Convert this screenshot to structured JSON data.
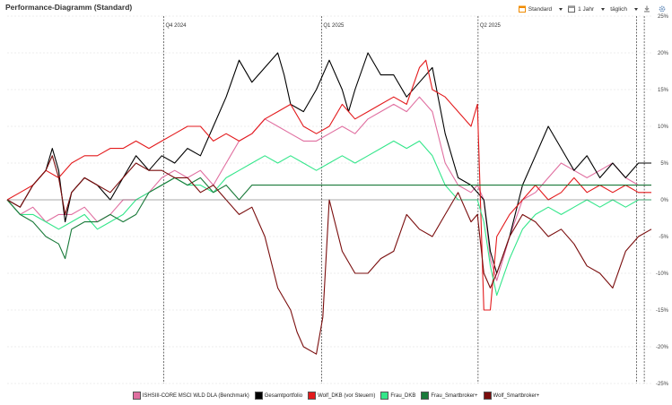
{
  "header": {
    "title": "Performance-Diagramm (Standard)",
    "view_label": "Standard",
    "period_label": "1 Jahr",
    "interval_label": "täglich"
  },
  "colors": {
    "benchmark": "#e06fa0",
    "gesamt": "#000000",
    "wolf_dkb": "#e31a1c",
    "frau_dkb": "#33e68a",
    "frau_smart": "#1a7a3a",
    "wolf_smart": "#7a0d0d"
  },
  "chart_data": {
    "type": "line",
    "title": "Performance-Diagramm (Standard)",
    "x_range": [
      0,
      100
    ],
    "ylim": [
      -25,
      25
    ],
    "y_ticks": [
      25,
      20,
      15,
      10,
      5,
      0,
      -5,
      -10,
      -15,
      -20,
      -25
    ],
    "y_tick_labels": [
      "25%",
      "20%",
      "15%",
      "10%",
      "5%",
      "0%",
      "-5%",
      "-10%",
      "-15%",
      "-20%",
      "-25%"
    ],
    "quarter_markers": [
      {
        "x": 24.3,
        "label": "Q4 2024"
      },
      {
        "x": 48.8,
        "label": "Q1 2025"
      },
      {
        "x": 73.1,
        "label": "Q2 2025"
      }
    ],
    "extra_markers": [
      97.7,
      98.9
    ],
    "series": [
      {
        "name": "ISHSIII-CORE MSCI WLD DLA (Benchmark)",
        "color_key": "benchmark",
        "x": [
          0,
          2,
          4,
          6,
          8,
          10,
          12,
          14,
          16,
          18,
          20,
          22,
          24,
          26,
          28,
          30,
          32,
          34,
          36,
          38,
          40,
          42,
          44,
          46,
          48,
          50,
          52,
          54,
          56,
          58,
          60,
          62,
          64,
          66,
          68,
          70,
          72,
          73,
          74,
          75,
          76,
          78,
          80,
          82,
          84,
          86,
          88,
          90,
          92,
          94,
          96,
          98,
          100
        ],
        "y": [
          0,
          -2,
          -1,
          -3,
          -2,
          -2,
          -1,
          -3,
          -2,
          0,
          0,
          1,
          3,
          4,
          3,
          4,
          2,
          5,
          8,
          9,
          11,
          10,
          9,
          8,
          8,
          9,
          10,
          9,
          11,
          12,
          13,
          12,
          14,
          12,
          5,
          2,
          1,
          2,
          0,
          -8,
          -11,
          -5,
          0,
          1,
          3,
          5,
          4,
          3,
          4,
          5,
          3,
          2,
          2
        ]
      },
      {
        "name": "Gesamtportfolio",
        "color_key": "gesamt",
        "x": [
          0,
          2,
          4,
          6,
          7,
          8,
          9,
          10,
          12,
          14,
          16,
          18,
          20,
          22,
          24,
          26,
          28,
          30,
          32,
          34,
          36,
          38,
          40,
          42,
          43,
          44,
          46,
          48,
          50,
          52,
          53,
          54,
          56,
          58,
          60,
          62,
          64,
          66,
          68,
          70,
          72,
          73,
          74,
          75,
          76,
          78,
          80,
          82,
          84,
          86,
          88,
          90,
          92,
          94,
          96,
          98,
          100
        ],
        "y": [
          0,
          -1,
          2,
          4,
          7,
          4,
          -3,
          1,
          3,
          2,
          0,
          3,
          6,
          4,
          6,
          5,
          7,
          6,
          10,
          14,
          19,
          16,
          18,
          20,
          17,
          13,
          12,
          15,
          19,
          15,
          12,
          15,
          20,
          17,
          17,
          14,
          16,
          18,
          9,
          3,
          2,
          1,
          0,
          -7,
          -10,
          -5,
          2,
          6,
          10,
          7,
          4,
          6,
          3,
          5,
          3,
          5,
          5
        ]
      },
      {
        "name": "Wolf_DKB (vor Steuern)",
        "color_key": "wolf_dkb",
        "x": [
          0,
          2,
          4,
          6,
          8,
          10,
          12,
          14,
          16,
          18,
          20,
          22,
          24,
          26,
          28,
          30,
          32,
          34,
          36,
          38,
          40,
          42,
          44,
          46,
          48,
          50,
          52,
          54,
          56,
          58,
          60,
          62,
          64,
          65,
          66,
          68,
          70,
          72,
          73,
          74,
          75,
          76,
          78,
          80,
          82,
          84,
          86,
          88,
          90,
          92,
          94,
          96,
          98,
          100
        ],
        "y": [
          0,
          1,
          2,
          4,
          3,
          5,
          6,
          6,
          7,
          7,
          8,
          7,
          8,
          9,
          10,
          10,
          8,
          9,
          8,
          9,
          11,
          12,
          13,
          10,
          9,
          10,
          13,
          11,
          12,
          13,
          14,
          13,
          18,
          19,
          15,
          14,
          12,
          10,
          13,
          -15,
          -15,
          -5,
          -2,
          0,
          2,
          0,
          1,
          3,
          1,
          2,
          1,
          2,
          1,
          1
        ]
      },
      {
        "name": "Frau_DKB",
        "color_key": "frau_dkb",
        "x": [
          0,
          2,
          4,
          6,
          8,
          10,
          12,
          14,
          16,
          18,
          20,
          22,
          24,
          26,
          28,
          30,
          32,
          34,
          36,
          38,
          40,
          42,
          44,
          46,
          48,
          50,
          52,
          54,
          56,
          58,
          60,
          62,
          64,
          66,
          68,
          70,
          72,
          73,
          74,
          75,
          76,
          78,
          80,
          82,
          84,
          86,
          88,
          90,
          92,
          94,
          96,
          98,
          100
        ],
        "y": [
          0,
          -2,
          -2,
          -3,
          -4,
          -3,
          -2,
          -4,
          -3,
          -2,
          0,
          1,
          2,
          3,
          2,
          2,
          1,
          3,
          4,
          5,
          6,
          5,
          6,
          5,
          4,
          5,
          6,
          5,
          6,
          7,
          8,
          7,
          8,
          6,
          2,
          0,
          0,
          0,
          -3,
          -9,
          -13,
          -8,
          -4,
          -2,
          -1,
          -2,
          -1,
          0,
          -1,
          0,
          -1,
          0,
          0
        ]
      },
      {
        "name": "Frau_Smartbroker+",
        "color_key": "frau_smart",
        "x": [
          0,
          2,
          4,
          6,
          8,
          9,
          10,
          12,
          14,
          16,
          18,
          20,
          22,
          24,
          26,
          28,
          30,
          32,
          34,
          36,
          38,
          40,
          100
        ],
        "y": [
          0,
          -2,
          -3,
          -5,
          -6,
          -8,
          -4,
          -3,
          -3,
          -2,
          -3,
          -2,
          1,
          2,
          3,
          2,
          3,
          1,
          2,
          0,
          2,
          2,
          2
        ]
      },
      {
        "name": "Wolf_Smartbroker+",
        "color_key": "wolf_smart",
        "x": [
          0,
          2,
          4,
          6,
          7,
          8,
          9,
          10,
          12,
          14,
          16,
          18,
          20,
          22,
          24,
          26,
          28,
          30,
          32,
          34,
          36,
          38,
          39,
          40,
          42,
          44,
          45,
          46,
          48,
          49,
          50,
          52,
          54,
          56,
          58,
          60,
          62,
          64,
          66,
          68,
          70,
          72,
          73,
          74,
          75,
          76,
          78,
          80,
          82,
          84,
          86,
          88,
          90,
          92,
          94,
          96,
          98,
          100
        ],
        "y": [
          0,
          -1,
          2,
          4,
          6,
          3,
          -2,
          1,
          3,
          2,
          1,
          3,
          5,
          4,
          4,
          3,
          3,
          1,
          2,
          0,
          -2,
          -1,
          -3,
          -5,
          -12,
          -15,
          -18,
          -20,
          -21,
          -16,
          0,
          -7,
          -10,
          -10,
          -8,
          -7,
          -2,
          -4,
          -5,
          -2,
          1,
          -3,
          -2,
          -10,
          -12,
          -10,
          -5,
          -2,
          -3,
          -5,
          -4,
          -6,
          -9,
          -10,
          -12,
          -7,
          -5,
          -4
        ]
      }
    ]
  },
  "legend": [
    {
      "label": "ISHSIII-CORE MSCI WLD DLA (Benchmark)",
      "color_key": "benchmark"
    },
    {
      "label": "Gesamtportfolio",
      "color_key": "gesamt"
    },
    {
      "label": "Wolf_DKB (vor Steuern)",
      "color_key": "wolf_dkb"
    },
    {
      "label": "Frau_DKB",
      "color_key": "frau_dkb"
    },
    {
      "label": "Frau_Smartbroker+",
      "color_key": "frau_smart"
    },
    {
      "label": "Wolf_Smartbroker+",
      "color_key": "wolf_smart"
    }
  ]
}
